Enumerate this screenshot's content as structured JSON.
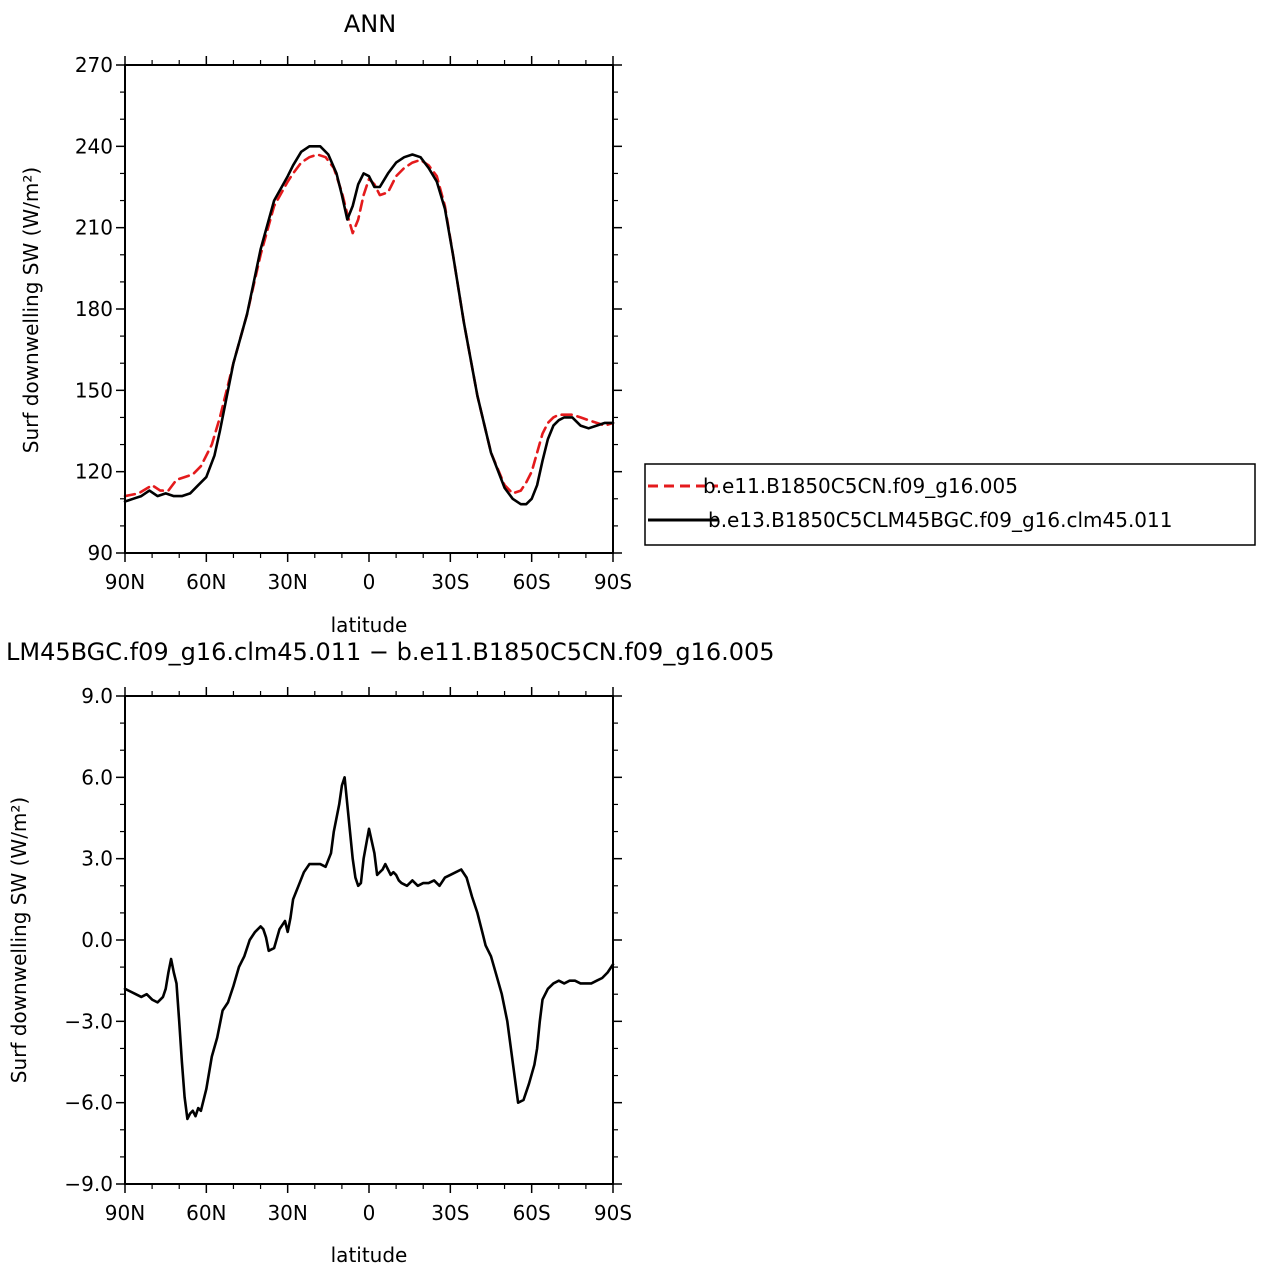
{
  "chart_data": [
    {
      "type": "line",
      "title": "ANN",
      "xlabel": "latitude",
      "ylabel": "Surf downwelling SW (W/m²)",
      "xlim": [
        90,
        -90
      ],
      "ylim": [
        90,
        270
      ],
      "x_ticks": [
        90,
        60,
        30,
        0,
        -30,
        -60,
        -90
      ],
      "x_tick_labels": [
        "90N",
        "60N",
        "30N",
        "0",
        "30S",
        "60S",
        "90S"
      ],
      "y_ticks": [
        90,
        120,
        150,
        180,
        210,
        240,
        270
      ],
      "y_tick_labels": [
        "90",
        "120",
        "150",
        "180",
        "210",
        "240",
        "270"
      ],
      "legend_position": "right",
      "series": [
        {
          "name": "b.e11.B1850C5CN.f09_g16.005",
          "color": "#e41a1c",
          "dash": "dashed",
          "x": [
            90,
            85,
            80,
            77,
            74,
            71,
            68,
            65,
            62,
            58,
            55,
            50,
            45,
            40,
            35,
            30,
            28,
            25,
            22,
            19,
            16,
            13,
            10,
            8,
            6,
            4,
            2,
            0,
            -2,
            -4,
            -7,
            -10,
            -13,
            -16,
            -19,
            -22,
            -25,
            -28,
            -31,
            -35,
            -40,
            -45,
            -50,
            -53,
            -56,
            -58,
            -60,
            -62,
            -64,
            -66,
            -68,
            -70,
            -72,
            -75,
            -78,
            -81,
            -84,
            -87,
            -90
          ],
          "y": [
            111,
            112,
            115,
            113,
            113,
            117,
            118,
            119,
            122,
            130,
            140,
            160,
            178,
            200,
            218,
            227,
            230,
            234,
            236,
            237,
            236,
            232,
            223,
            215,
            208,
            213,
            222,
            228,
            226,
            222,
            223,
            229,
            232,
            234,
            235,
            233,
            229,
            218,
            200,
            175,
            148,
            127,
            115,
            112,
            113,
            116,
            120,
            127,
            134,
            138,
            140,
            141,
            141,
            141,
            140,
            139,
            138,
            137,
            138
          ]
        },
        {
          "name": "b.e13.B1850C5CLM45BGC.f09_g16.clm45.011",
          "color": "#000000",
          "dash": "solid",
          "x": [
            90,
            87,
            84,
            81,
            78,
            75,
            72,
            69,
            66,
            63,
            60,
            57,
            55,
            50,
            45,
            40,
            35,
            30,
            28,
            25,
            22,
            20,
            18,
            15,
            12,
            10,
            8,
            6,
            4,
            2,
            0,
            -2,
            -4,
            -7,
            -10,
            -13,
            -16,
            -19,
            -22,
            -25,
            -28,
            -31,
            -35,
            -40,
            -45,
            -50,
            -53,
            -56,
            -58,
            -60,
            -62,
            -64,
            -66,
            -68,
            -70,
            -72,
            -75,
            -78,
            -81,
            -84,
            -87,
            -90
          ],
          "y": [
            109,
            110,
            111,
            113,
            111,
            112,
            111,
            111,
            112,
            115,
            118,
            126,
            135,
            160,
            178,
            202,
            220,
            229,
            233,
            238,
            240,
            240,
            240,
            237,
            230,
            222,
            213,
            218,
            226,
            230,
            229,
            225,
            225,
            230,
            234,
            236,
            237,
            236,
            232,
            227,
            217,
            200,
            175,
            148,
            127,
            114,
            110,
            108,
            108,
            110,
            115,
            124,
            132,
            137,
            139,
            140,
            140,
            137,
            136,
            137,
            138,
            138
          ]
        }
      ]
    },
    {
      "type": "line",
      "title": "LM45BGC.f09_g16.clm45.011 − b.e11.B1850C5CN.f09_g16.005",
      "xlabel": "latitude",
      "ylabel": "Surf downwelling SW (W/m²)",
      "xlim": [
        90,
        -90
      ],
      "ylim": [
        -9,
        9
      ],
      "x_ticks": [
        90,
        60,
        30,
        0,
        -30,
        -60,
        -90
      ],
      "x_tick_labels": [
        "90N",
        "60N",
        "30N",
        "0",
        "30S",
        "60S",
        "90S"
      ],
      "y_ticks": [
        -9,
        -6,
        -3,
        0,
        3,
        6,
        9
      ],
      "y_tick_labels": [
        "−9.0",
        "−6.0",
        "−3.0",
        "0.0",
        "3.0",
        "6.0",
        "9.0"
      ],
      "series": [
        {
          "name": "",
          "color": "#000000",
          "dash": "solid",
          "x": [
            90,
            88,
            86,
            84,
            82,
            80,
            78,
            76,
            75,
            74,
            73,
            72,
            71,
            70,
            69,
            68,
            67,
            66,
            65,
            64,
            63,
            62,
            60,
            58,
            56,
            54,
            52,
            50,
            48,
            46,
            44,
            42,
            40,
            39,
            38,
            37,
            35,
            33,
            31,
            30,
            29,
            28,
            26,
            24,
            22,
            20,
            18,
            16,
            14,
            13,
            12,
            11,
            10,
            9,
            8,
            7,
            6,
            5,
            4,
            3,
            2,
            0,
            -2,
            -3,
            -4,
            -5,
            -6,
            -7,
            -8,
            -9,
            -10,
            -11,
            -12,
            -14,
            -16,
            -18,
            -20,
            -22,
            -24,
            -26,
            -28,
            -30,
            -32,
            -34,
            -36,
            -38,
            -40,
            -42,
            -43,
            -45,
            -47,
            -49,
            -51,
            -53,
            -55,
            -57,
            -59,
            -61,
            -62,
            -63,
            -64,
            -66,
            -68,
            -70,
            -72,
            -74,
            -76,
            -78,
            -80,
            -82,
            -84,
            -86,
            -88,
            -90
          ],
          "y": [
            -1.8,
            -1.9,
            -2.0,
            -2.1,
            -2.0,
            -2.2,
            -2.3,
            -2.1,
            -1.8,
            -1.2,
            -0.7,
            -1.2,
            -1.6,
            -3.0,
            -4.5,
            -5.8,
            -6.6,
            -6.4,
            -6.3,
            -6.5,
            -6.2,
            -6.3,
            -5.5,
            -4.3,
            -3.6,
            -2.6,
            -2.3,
            -1.7,
            -1.0,
            -0.6,
            0.0,
            0.3,
            0.5,
            0.4,
            0.1,
            -0.4,
            -0.3,
            0.4,
            0.7,
            0.3,
            0.8,
            1.5,
            2.0,
            2.5,
            2.8,
            2.8,
            2.8,
            2.7,
            3.2,
            4.0,
            4.5,
            5.0,
            5.7,
            6.0,
            5.0,
            4.0,
            3.0,
            2.3,
            2.0,
            2.1,
            3.0,
            4.1,
            3.2,
            2.4,
            2.5,
            2.6,
            2.8,
            2.6,
            2.4,
            2.5,
            2.4,
            2.2,
            2.1,
            2.0,
            2.2,
            2.0,
            2.1,
            2.1,
            2.2,
            2.0,
            2.3,
            2.4,
            2.5,
            2.6,
            2.3,
            1.6,
            1.0,
            0.2,
            -0.2,
            -0.6,
            -1.3,
            -2.0,
            -3.0,
            -4.5,
            -6.0,
            -5.9,
            -5.3,
            -4.6,
            -4.0,
            -3.0,
            -2.2,
            -1.8,
            -1.6,
            -1.5,
            -1.6,
            -1.5,
            -1.5,
            -1.6,
            -1.6,
            -1.6,
            -1.5,
            -1.4,
            -1.2,
            -0.9
          ]
        }
      ]
    }
  ]
}
